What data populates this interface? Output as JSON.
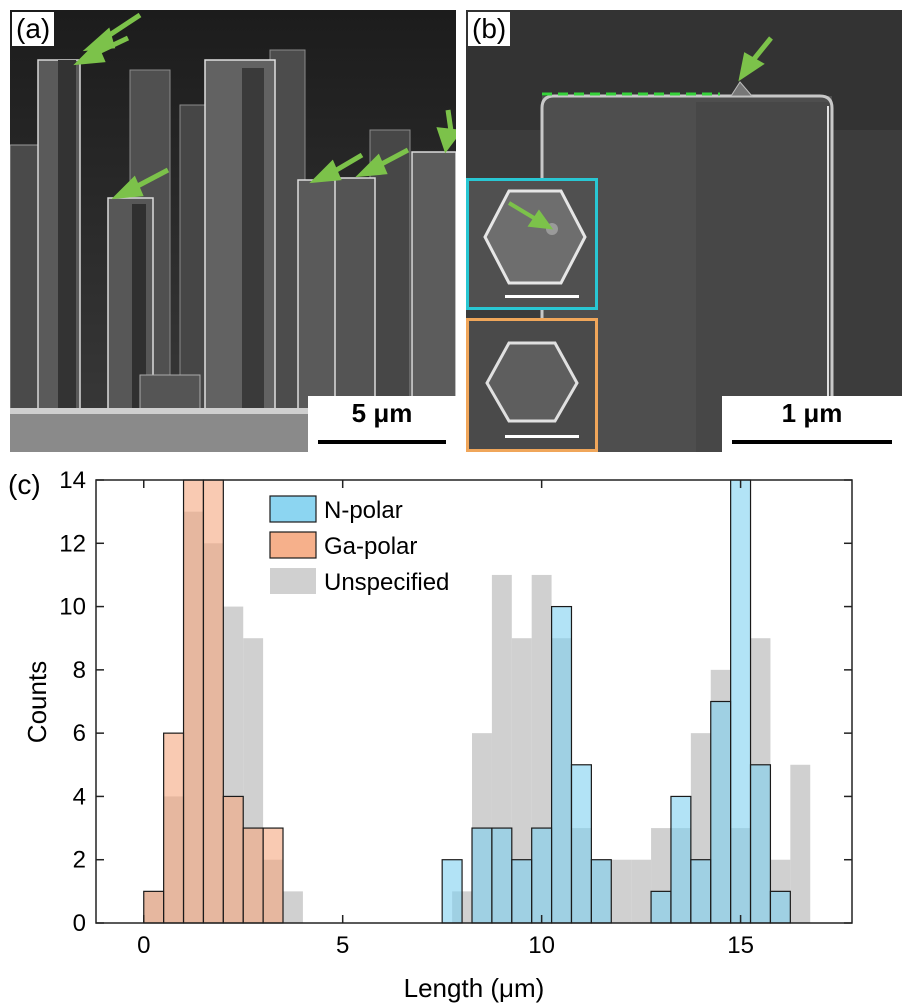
{
  "panels": {
    "a": {
      "tag": "(a)",
      "scale_label": "5 μm"
    },
    "b": {
      "tag": "(b)",
      "scale_label": "1 μm"
    },
    "c": {
      "tag": "(c)"
    }
  },
  "colors": {
    "arrow": "#7cc24a",
    "dashed_line": "#35d23a",
    "inset_top_border": "#29c7d3",
    "inset_bottom_border": "#f0a65a",
    "n_polar": "#7fd0f0",
    "ga_polar": "#f5a77e",
    "unspecified": "#c8c8c8"
  },
  "chart_data": {
    "type": "bar",
    "xlabel": "Length (μm)",
    "ylabel": "Counts",
    "xlim": [
      -1.2,
      17.8
    ],
    "ylim": [
      0,
      14
    ],
    "xticks": [
      0,
      5,
      10,
      15
    ],
    "yticks": [
      0,
      2,
      4,
      6,
      8,
      10,
      12,
      14
    ],
    "legend_position": "top-center",
    "bin_width": 0.5,
    "series": [
      {
        "name": "Unspecified",
        "bins": [
          [
            0,
            1
          ],
          [
            0.5,
            4
          ],
          [
            1,
            13
          ],
          [
            1.5,
            12
          ],
          [
            2,
            10
          ],
          [
            2.5,
            9
          ],
          [
            3,
            2
          ],
          [
            3.5,
            1
          ],
          [
            7.75,
            1
          ],
          [
            8.25,
            6
          ],
          [
            8.75,
            11
          ],
          [
            9.25,
            9
          ],
          [
            9.75,
            11
          ],
          [
            10.25,
            9
          ],
          [
            10.75,
            3
          ],
          [
            11.25,
            2
          ],
          [
            11.75,
            2
          ],
          [
            12.25,
            2
          ],
          [
            12.75,
            3
          ],
          [
            13.25,
            3
          ],
          [
            13.75,
            6
          ],
          [
            14.25,
            8
          ],
          [
            14.75,
            3
          ],
          [
            15.25,
            9
          ],
          [
            15.75,
            2
          ],
          [
            16.25,
            5
          ]
        ]
      },
      {
        "name": "N-polar",
        "bins": [
          [
            7.5,
            2
          ],
          [
            8.25,
            3
          ],
          [
            8.75,
            3
          ],
          [
            9.25,
            2
          ],
          [
            9.75,
            3
          ],
          [
            10.25,
            10
          ],
          [
            10.75,
            5
          ],
          [
            11.25,
            2
          ],
          [
            12.75,
            1
          ],
          [
            13.25,
            4
          ],
          [
            13.75,
            2
          ],
          [
            14.25,
            7
          ],
          [
            14.75,
            14
          ],
          [
            15.25,
            5
          ],
          [
            15.75,
            1
          ]
        ]
      },
      {
        "name": "Ga-polar",
        "bins": [
          [
            0,
            1
          ],
          [
            0.5,
            6
          ],
          [
            1,
            14
          ],
          [
            1.5,
            14
          ],
          [
            2,
            4
          ],
          [
            2.5,
            3
          ],
          [
            3,
            3
          ]
        ]
      }
    ],
    "legend": [
      "N-polar",
      "Ga-polar",
      "Unspecified"
    ]
  }
}
